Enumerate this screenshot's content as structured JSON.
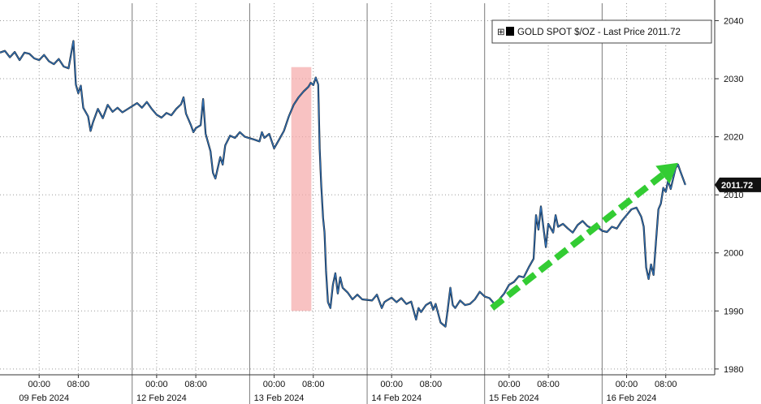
{
  "chart_data": {
    "type": "line",
    "title": "",
    "xlabel": "",
    "ylabel": "",
    "y_axis_side": "right",
    "ylim": [
      1979,
      2043
    ],
    "y_ticks": [
      1980,
      1990,
      2000,
      2010,
      2020,
      2030,
      2040
    ],
    "x_unit": "hours since 09 Feb 2024 00:00",
    "xlim": [
      -8,
      138
    ],
    "grid": true,
    "legend": {
      "placement": "top-right",
      "text": "GOLD SPOT $/OZ - Last Price 2011.72",
      "marker_symbol": "⊞"
    },
    "last_price": {
      "value": 2011.72,
      "label": "2011.72",
      "color": "#111111"
    },
    "day_separators": [
      19,
      43,
      67,
      91,
      115
    ],
    "x_time_ticks": [
      {
        "x": 0,
        "label": "00:00"
      },
      {
        "x": 8,
        "label": "08:00"
      },
      {
        "x": 24,
        "label": "00:00"
      },
      {
        "x": 32,
        "label": "08:00"
      },
      {
        "x": 48,
        "label": "00:00"
      },
      {
        "x": 56,
        "label": "08:00"
      },
      {
        "x": 72,
        "label": "00:00"
      },
      {
        "x": 80,
        "label": "08:00"
      },
      {
        "x": 96,
        "label": "00:00"
      },
      {
        "x": 104,
        "label": "08:00"
      },
      {
        "x": 120,
        "label": "00:00"
      },
      {
        "x": 128,
        "label": "08:00"
      }
    ],
    "x_date_labels": [
      {
        "x": 1,
        "label": "09 Feb 2024"
      },
      {
        "x": 25,
        "label": "12 Feb 2024"
      },
      {
        "x": 49,
        "label": "13 Feb 2024"
      },
      {
        "x": 73,
        "label": "14 Feb 2024"
      },
      {
        "x": 97,
        "label": "15 Feb 2024"
      },
      {
        "x": 121,
        "label": "16 Feb 2024"
      }
    ],
    "highlight": {
      "x_range": [
        51.5,
        55.6
      ],
      "y_range": [
        1990,
        2032
      ],
      "color": "#f5a8a8"
    },
    "trend_arrow": {
      "from": [
        92.5,
        1990.5
      ],
      "to": [
        130.5,
        2015.5
      ],
      "color": "#33cc33"
    },
    "series": [
      {
        "color": "#2f6fb5",
        "points": [
          [
            -8,
            2034.5
          ],
          [
            -7,
            2034.8
          ],
          [
            -6,
            2033.7
          ],
          [
            -5,
            2034.6
          ],
          [
            -4,
            2033.2
          ],
          [
            -3,
            2034.5
          ],
          [
            -2,
            2034.3
          ],
          [
            -1,
            2033.5
          ],
          [
            0,
            2033.2
          ],
          [
            1,
            2034.1
          ],
          [
            2,
            2033.0
          ],
          [
            3,
            2032.5
          ],
          [
            4,
            2033.4
          ],
          [
            5,
            2032.1
          ],
          [
            6,
            2031.8
          ],
          [
            7,
            2036.5
          ],
          [
            7.5,
            2029.0
          ],
          [
            8,
            2027.5
          ],
          [
            8.5,
            2028.8
          ],
          [
            9,
            2025.0
          ],
          [
            10,
            2023.5
          ],
          [
            10.5,
            2021.0
          ],
          [
            11,
            2022.5
          ],
          [
            12,
            2024.8
          ],
          [
            13,
            2023.2
          ],
          [
            14,
            2025.5
          ],
          [
            15,
            2024.3
          ],
          [
            16,
            2025.0
          ],
          [
            17,
            2024.2
          ],
          [
            20,
            2025.8
          ],
          [
            21,
            2025.0
          ],
          [
            22,
            2026.0
          ],
          [
            23,
            2024.8
          ],
          [
            24,
            2023.8
          ],
          [
            25,
            2023.3
          ],
          [
            26,
            2024.1
          ],
          [
            27,
            2023.7
          ],
          [
            28,
            2024.8
          ],
          [
            29,
            2025.6
          ],
          [
            29.5,
            2026.8
          ],
          [
            30,
            2024.0
          ],
          [
            31,
            2022.0
          ],
          [
            31.5,
            2020.8
          ],
          [
            32,
            2021.5
          ],
          [
            33,
            2022.0
          ],
          [
            33.5,
            2026.5
          ],
          [
            34,
            2020.5
          ],
          [
            35,
            2017.5
          ],
          [
            35.5,
            2013.8
          ],
          [
            36,
            2012.8
          ],
          [
            37,
            2016.5
          ],
          [
            37.5,
            2015.2
          ],
          [
            38,
            2018.5
          ],
          [
            39,
            2020.2
          ],
          [
            40,
            2019.8
          ],
          [
            41,
            2020.8
          ],
          [
            42,
            2020.0
          ],
          [
            44,
            2019.5
          ],
          [
            45,
            2019.2
          ],
          [
            45.5,
            2020.8
          ],
          [
            46,
            2019.8
          ],
          [
            47,
            2020.5
          ],
          [
            48,
            2018.0
          ],
          [
            49,
            2019.5
          ],
          [
            50,
            2021.0
          ],
          [
            51,
            2023.5
          ],
          [
            52,
            2025.5
          ],
          [
            53,
            2026.8
          ],
          [
            54,
            2027.8
          ],
          [
            55,
            2028.6
          ],
          [
            55.5,
            2029.3
          ],
          [
            56,
            2028.9
          ],
          [
            56.5,
            2030.2
          ],
          [
            57,
            2029.0
          ],
          [
            57.3,
            2018.0
          ],
          [
            57.6,
            2012.0
          ],
          [
            58,
            2006.0
          ],
          [
            58.3,
            2003.5
          ],
          [
            58.6,
            1997.0
          ],
          [
            59,
            1991.5
          ],
          [
            59.5,
            1990.5
          ],
          [
            60,
            1994.5
          ],
          [
            60.5,
            1996.5
          ],
          [
            61,
            1993.0
          ],
          [
            61.5,
            1995.8
          ],
          [
            62,
            1994.0
          ],
          [
            63,
            1993.2
          ],
          [
            64,
            1992.0
          ],
          [
            65,
            1992.8
          ],
          [
            66,
            1992.0
          ],
          [
            68,
            1991.8
          ],
          [
            69,
            1992.8
          ],
          [
            70,
            1990.5
          ],
          [
            70.5,
            1991.5
          ],
          [
            71,
            1991.8
          ],
          [
            72,
            1992.3
          ],
          [
            73,
            1991.5
          ],
          [
            74,
            1992.2
          ],
          [
            75,
            1991.2
          ],
          [
            76,
            1991.6
          ],
          [
            77,
            1988.5
          ],
          [
            77.5,
            1990.5
          ],
          [
            78,
            1989.8
          ],
          [
            79,
            1991.0
          ],
          [
            80,
            1991.5
          ],
          [
            80.5,
            1990.2
          ],
          [
            81,
            1991.2
          ],
          [
            82,
            1988.0
          ],
          [
            83,
            1987.3
          ],
          [
            83.5,
            1990.5
          ],
          [
            84,
            1994.0
          ],
          [
            84.5,
            1991.0
          ],
          [
            85,
            1990.5
          ],
          [
            86,
            1991.8
          ],
          [
            87,
            1991.0
          ],
          [
            88,
            1991.2
          ],
          [
            89,
            1992.0
          ],
          [
            90,
            1993.3
          ],
          [
            91,
            1992.5
          ],
          [
            92,
            1992.2
          ],
          [
            93,
            1991.2
          ],
          [
            94,
            1992.0
          ],
          [
            95,
            1993.0
          ],
          [
            96,
            1994.5
          ],
          [
            97,
            1995.0
          ],
          [
            98,
            1996.0
          ],
          [
            99,
            1995.8
          ],
          [
            100,
            1997.5
          ],
          [
            101,
            1999.0
          ],
          [
            101.5,
            2006.5
          ],
          [
            102,
            2004.0
          ],
          [
            102.5,
            2008.0
          ],
          [
            103,
            2004.5
          ],
          [
            103.5,
            2001.0
          ],
          [
            104,
            2005.0
          ],
          [
            105,
            2003.5
          ],
          [
            105.5,
            2006.5
          ],
          [
            106,
            2004.5
          ],
          [
            107,
            2005.0
          ],
          [
            108,
            2004.2
          ],
          [
            109,
            2003.5
          ],
          [
            110,
            2004.8
          ],
          [
            111,
            2005.5
          ],
          [
            112,
            2004.6
          ],
          [
            113,
            2004.2
          ],
          [
            114,
            2004.5
          ],
          [
            115,
            2003.8
          ],
          [
            116,
            2003.6
          ],
          [
            117,
            2004.5
          ],
          [
            118,
            2004.2
          ],
          [
            119,
            2005.5
          ],
          [
            120,
            2006.5
          ],
          [
            121,
            2007.5
          ],
          [
            122,
            2007.8
          ],
          [
            123,
            2006.2
          ],
          [
            123.5,
            2004.5
          ],
          [
            124,
            1997.5
          ],
          [
            124.5,
            1995.5
          ],
          [
            125,
            1998.0
          ],
          [
            125.5,
            1996.2
          ],
          [
            126,
            2002.0
          ],
          [
            126.5,
            2007.5
          ],
          [
            127,
            2008.5
          ],
          [
            127.5,
            2011.2
          ],
          [
            128,
            2010.5
          ],
          [
            128.5,
            2012.5
          ],
          [
            129,
            2011.0
          ],
          [
            130,
            2014.6
          ],
          [
            130.5,
            2015.2
          ],
          [
            131,
            2014.0
          ],
          [
            132,
            2011.72
          ]
        ]
      }
    ]
  }
}
